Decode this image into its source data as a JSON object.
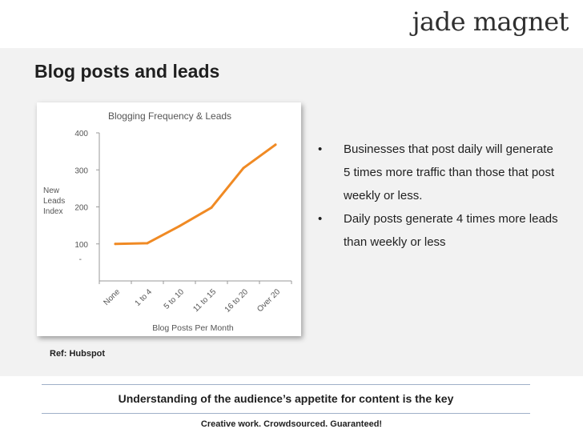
{
  "brand": {
    "logo_text": "jade magnet"
  },
  "slide": {
    "title": "Blog posts and leads",
    "bullets": [
      {
        "marker": "•",
        "text": "Businesses that post daily will generate 5 times more traffic than those that post weekly or less."
      },
      {
        "marker": "•",
        "text": "Daily posts generate 4 times more leads than weekly or less"
      }
    ],
    "ref": "Ref: Hubspot",
    "key_message": "Understanding of the audience’s appetite for content is the key",
    "tagline": "Creative work. Crowdsourced. Guaranteed!"
  },
  "colors": {
    "line": "#f08a24",
    "axis": "#9a9a9a",
    "text": "#555555",
    "rule": "#9fb0c8"
  },
  "chart_data": {
    "type": "line",
    "title": "Blogging Frequency  & Leads",
    "xlabel": "Blog Posts Per Month",
    "ylabel": "New Leads Index",
    "ylabel_lines": [
      "New",
      "Leads",
      "Index"
    ],
    "categories": [
      "None",
      "1 to 4",
      "5 to 10",
      "11 to 15",
      "16 to 20",
      "Over 20"
    ],
    "values": [
      100,
      102,
      148,
      198,
      305,
      368
    ],
    "y_ticks": [
      400,
      300,
      200,
      100
    ],
    "ylim": [
      0,
      400
    ],
    "grid": false,
    "legend": "none"
  }
}
